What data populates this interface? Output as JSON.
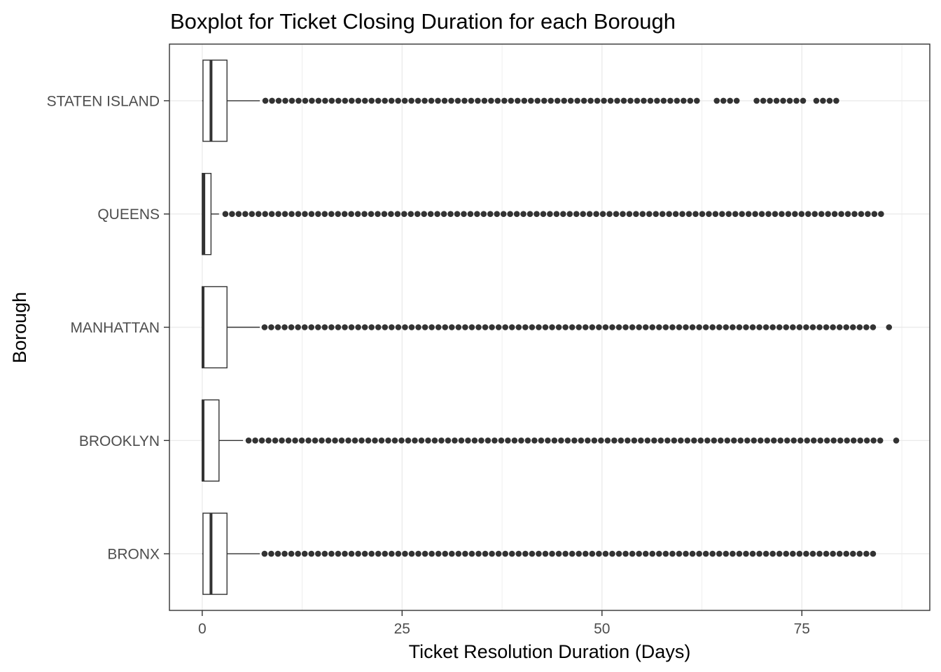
{
  "chart_data": {
    "type": "boxplot",
    "orientation": "horizontal",
    "title": "Boxplot for Ticket Closing Duration for each Borough",
    "xlabel": "Ticket Resolution Duration (Days)",
    "ylabel": "Borough",
    "xlim": [
      -4.1,
      91.0
    ],
    "xticks": [
      0,
      25,
      50,
      75
    ],
    "xtick_labels": [
      "0",
      "25",
      "50",
      "75"
    ],
    "grid": true,
    "categories": [
      "BRONX",
      "BROOKLYN",
      "MANHATTAN",
      "QUEENS",
      "STATEN ISLAND"
    ],
    "boxes": [
      {
        "name": "BRONX",
        "whisker_low": 0.0,
        "q1": 0.1,
        "median": 1.1,
        "q3": 3.1,
        "whisker_high": 7.2,
        "outliers_from": 7.8,
        "outliers_to": 83.9,
        "gaps": []
      },
      {
        "name": "BROOKLYN",
        "whisker_low": 0.0,
        "q1": 0.0,
        "median": 0.1,
        "q3": 2.1,
        "whisker_high": 5.1,
        "outliers_from": 5.8,
        "outliers_to": 84.8,
        "gaps": [
          [
            85.2,
            86.5
          ]
        ],
        "extra_outliers": [
          86.8
        ]
      },
      {
        "name": "MANHATTAN",
        "whisker_low": 0.0,
        "q1": 0.0,
        "median": 0.1,
        "q3": 3.1,
        "whisker_high": 7.2,
        "outliers_from": 7.8,
        "outliers_to": 83.9,
        "gaps": [],
        "extra_outliers": [
          85.9
        ]
      },
      {
        "name": "QUEENS",
        "whisker_low": 0.0,
        "q1": 0.0,
        "median": 0.2,
        "q3": 1.1,
        "whisker_high": 2.1,
        "outliers_from": 2.9,
        "outliers_to": 84.9,
        "gaps": []
      },
      {
        "name": "STATEN ISLAND",
        "whisker_low": 0.0,
        "q1": 0.1,
        "median": 1.1,
        "q3": 3.1,
        "whisker_high": 7.2,
        "outliers_from": 7.9,
        "outliers_to": 79.3,
        "gaps": [
          [
            62.2,
            63.8
          ],
          [
            67.2,
            68.9
          ],
          [
            75.2,
            76.6
          ]
        ]
      }
    ],
    "colors": {
      "box": "#333333",
      "outlier": "#333333",
      "grid": "#ebebeb",
      "panel_border": "#333333",
      "tick_text": "#4d4d4d",
      "text": "#000000"
    }
  }
}
